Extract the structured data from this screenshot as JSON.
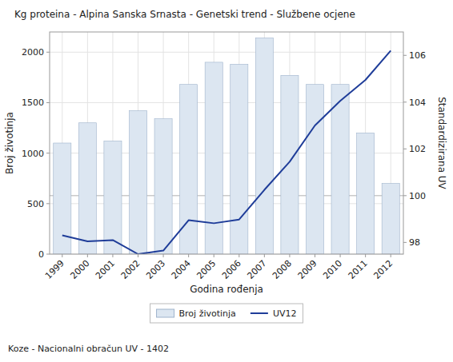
{
  "chart_data": {
    "type": "bar",
    "title": "Kg proteina - Alpina Sanska Srnasta - Genetski trend - Službene ocjene",
    "xlabel": "Godina rođenja",
    "ylabel": "Broj životinja",
    "y2label": "Standardizirana UV",
    "annotations": [
      "Koze - Nacionalni obračun UV - 1402"
    ],
    "x": [
      1999,
      2000,
      2001,
      2002,
      2003,
      2004,
      2005,
      2006,
      2007,
      2008,
      2009,
      2010,
      2011,
      2012
    ],
    "xlim": [
      1998.5,
      2012.5
    ],
    "xticks": [
      1999,
      2000,
      2001,
      2002,
      2003,
      2004,
      2005,
      2006,
      2007,
      2008,
      2009,
      2010,
      2011,
      2012
    ],
    "series": [
      {
        "name": "Broj životinja",
        "type": "bar",
        "color": "#dce6f1",
        "values": [
          1100,
          1300,
          1120,
          1420,
          1340,
          1680,
          1900,
          1880,
          2140,
          1770,
          1680,
          1680,
          1200,
          700
        ]
      },
      {
        "name": "UV12",
        "type": "line",
        "color": "#1f3d99",
        "axis": "y2",
        "values": [
          98.3,
          98.05,
          98.1,
          97.5,
          97.65,
          98.95,
          98.82,
          98.98,
          100.25,
          101.45,
          103.0,
          104.05,
          104.95,
          106.2
        ]
      }
    ],
    "ylim": [
      0,
      2200
    ],
    "yticks": [
      0,
      500,
      1000,
      1500,
      2000
    ],
    "y2lim": [
      97.5,
      107.0
    ],
    "y2ticks": [
      98,
      100,
      102,
      104,
      106
    ],
    "reference_lines": [
      {
        "value": 100,
        "axis": "y2"
      }
    ],
    "grid": true,
    "legend": "bottom"
  }
}
